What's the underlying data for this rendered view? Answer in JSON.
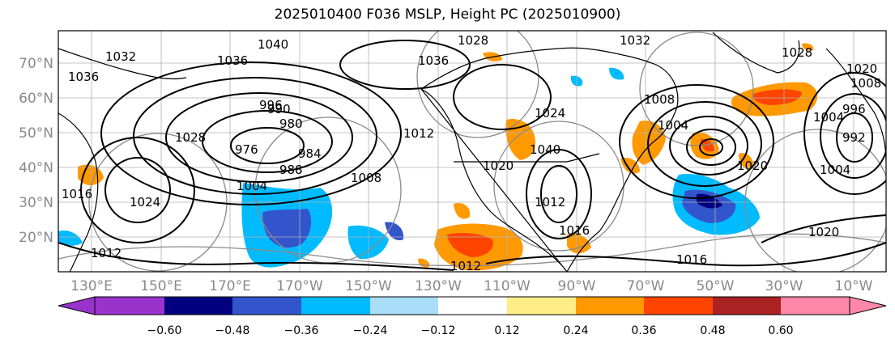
{
  "title": "2025010400 F036 MSLP, Height PC (2025010900)",
  "map": {
    "lat_labels": [
      "70°N",
      "60°N",
      "50°N",
      "40°N",
      "30°N",
      "20°N"
    ],
    "lon_labels": [
      "130°E",
      "150°E",
      "170°E",
      "170°W",
      "150°W",
      "130°W",
      "110°W",
      "90°W",
      "70°W",
      "50°W",
      "30°W",
      "10°W"
    ],
    "isobar_labels": [
      "1036",
      "1040",
      "1032",
      "1028",
      "1036",
      "1032",
      "1028",
      "1020",
      "1036",
      "996",
      "990",
      "980",
      "976",
      "984",
      "988",
      "1004",
      "1008",
      "1012",
      "1016",
      "1024",
      "1012",
      "1012",
      "1016",
      "1008",
      "1004",
      "1004",
      "1020",
      "1024",
      "1040",
      "1028",
      "1016",
      "1004",
      "1008",
      "992",
      "996",
      "1012",
      "1020",
      "1020"
    ],
    "colors": {
      "coast": "#000000",
      "isobar": "#000000",
      "grid": "#9a9a9a"
    }
  },
  "colorbar": {
    "ticks": [
      "−0.60",
      "−0.48",
      "−0.36",
      "−0.24",
      "−0.12",
      "0.12",
      "0.24",
      "0.36",
      "0.48",
      "0.60"
    ],
    "colors": [
      "#9933cc",
      "#000080",
      "#3355cc",
      "#00bbff",
      "#aaddf7",
      "#ffffff",
      "#ffee88",
      "#ff9900",
      "#ff4400",
      "#aa2222",
      "#ff88aa"
    ]
  }
}
